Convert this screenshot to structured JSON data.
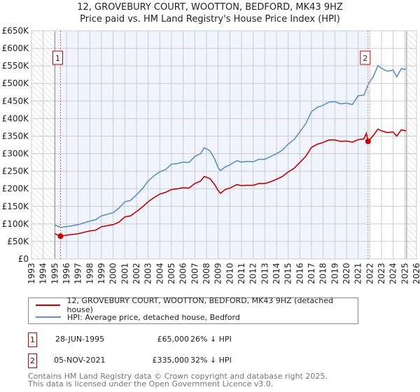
{
  "title_line1": "12, GROVEBURY COURT, WOOTTON, BEDFORD, MK43 9HZ",
  "title_line2": "Price paid vs. HM Land Registry's House Price Index (HPI)",
  "colors": {
    "price": "#cc0000",
    "hpi": "#5b8fd0",
    "shade": "#f0f4fd"
  },
  "chart_data": {
    "type": "line",
    "ylabel": "",
    "xlabel": "",
    "ylim": [
      0,
      650000
    ],
    "xlim": [
      1993,
      2026
    ],
    "yticks": [
      "£0",
      "£50K",
      "£100K",
      "£150K",
      "£200K",
      "£250K",
      "£300K",
      "£350K",
      "£400K",
      "£450K",
      "£500K",
      "£550K",
      "£600K",
      "£650K"
    ],
    "xticks": [
      "1993",
      "1994",
      "1995",
      "1996",
      "1997",
      "1998",
      "1999",
      "2000",
      "2001",
      "2002",
      "2003",
      "2004",
      "2005",
      "2006",
      "2007",
      "2008",
      "2009",
      "2010",
      "2011",
      "2012",
      "2013",
      "2014",
      "2015",
      "2016",
      "2017",
      "2018",
      "2019",
      "2020",
      "2021",
      "2022",
      "2023",
      "2024",
      "2025",
      "2026"
    ],
    "data_range": [
      1995.0,
      2025.15
    ],
    "series": [
      {
        "name": "12, GROVEBURY COURT, WOOTTON, BEDFORD, MK43 9HZ (detached house)",
        "color": "#cc0000",
        "points": [
          [
            1995.0,
            72
          ],
          [
            1995.5,
            65
          ],
          [
            1996,
            68
          ],
          [
            1997,
            72
          ],
          [
            1998,
            80
          ],
          [
            1998.5,
            82
          ],
          [
            1999,
            92
          ],
          [
            2000,
            98
          ],
          [
            2000.5,
            105
          ],
          [
            2001,
            120
          ],
          [
            2001.5,
            123
          ],
          [
            2002,
            135
          ],
          [
            2002.5,
            148
          ],
          [
            2003,
            163
          ],
          [
            2003.5,
            175
          ],
          [
            2004,
            185
          ],
          [
            2004.5,
            190
          ],
          [
            2005,
            198
          ],
          [
            2005.5,
            200
          ],
          [
            2006,
            203
          ],
          [
            2006.5,
            202
          ],
          [
            2007,
            215
          ],
          [
            2007.5,
            222
          ],
          [
            2007.8,
            235
          ],
          [
            2008.3,
            229
          ],
          [
            2008.7,
            212
          ],
          [
            2009,
            195
          ],
          [
            2009.2,
            187
          ],
          [
            2009.6,
            198
          ],
          [
            2010,
            202
          ],
          [
            2010.6,
            212
          ],
          [
            2011,
            209
          ],
          [
            2011.5,
            210
          ],
          [
            2012,
            210
          ],
          [
            2012.5,
            215
          ],
          [
            2013,
            215
          ],
          [
            2013.5,
            220
          ],
          [
            2014,
            227
          ],
          [
            2014.5,
            235
          ],
          [
            2015,
            248
          ],
          [
            2015.5,
            258
          ],
          [
            2016,
            275
          ],
          [
            2016.5,
            292
          ],
          [
            2017,
            318
          ],
          [
            2017.5,
            327
          ],
          [
            2018,
            332
          ],
          [
            2018.5,
            339
          ],
          [
            2019,
            339
          ],
          [
            2019.5,
            335
          ],
          [
            2020,
            336
          ],
          [
            2020.5,
            333
          ],
          [
            2021,
            340
          ],
          [
            2021.5,
            342
          ],
          [
            2021.7,
            358
          ],
          [
            2021.85,
            335
          ],
          [
            2022.3,
            352
          ],
          [
            2022.7,
            370
          ],
          [
            2023,
            365
          ],
          [
            2023.5,
            360
          ],
          [
            2024,
            362
          ],
          [
            2024.3,
            350
          ],
          [
            2024.7,
            368
          ],
          [
            2025.1,
            365
          ]
        ]
      },
      {
        "name": "HPI: Average price, detached house, Bedford",
        "color": "#5b8fd0",
        "points": [
          [
            1995.0,
            97
          ],
          [
            1995.5,
            90
          ],
          [
            1996,
            92
          ],
          [
            1997,
            98
          ],
          [
            1998,
            108
          ],
          [
            1998.5,
            112
          ],
          [
            1999,
            123
          ],
          [
            2000,
            132
          ],
          [
            2000.5,
            145
          ],
          [
            2001,
            163
          ],
          [
            2001.5,
            167
          ],
          [
            2002,
            183
          ],
          [
            2002.5,
            200
          ],
          [
            2003,
            222
          ],
          [
            2003.5,
            237
          ],
          [
            2004,
            248
          ],
          [
            2004.5,
            255
          ],
          [
            2005,
            270
          ],
          [
            2005.5,
            272
          ],
          [
            2006,
            276
          ],
          [
            2006.5,
            275
          ],
          [
            2007,
            292
          ],
          [
            2007.5,
            300
          ],
          [
            2007.8,
            317
          ],
          [
            2008.3,
            308
          ],
          [
            2008.7,
            285
          ],
          [
            2009,
            260
          ],
          [
            2009.2,
            252
          ],
          [
            2009.6,
            262
          ],
          [
            2010,
            268
          ],
          [
            2010.6,
            280
          ],
          [
            2011,
            276
          ],
          [
            2011.5,
            278
          ],
          [
            2012,
            277
          ],
          [
            2012.5,
            284
          ],
          [
            2013,
            284
          ],
          [
            2013.5,
            292
          ],
          [
            2014,
            300
          ],
          [
            2014.5,
            310
          ],
          [
            2015,
            327
          ],
          [
            2015.5,
            340
          ],
          [
            2016,
            362
          ],
          [
            2016.5,
            385
          ],
          [
            2017,
            420
          ],
          [
            2017.5,
            432
          ],
          [
            2018,
            438
          ],
          [
            2018.5,
            447
          ],
          [
            2019,
            448
          ],
          [
            2019.5,
            442
          ],
          [
            2020,
            444
          ],
          [
            2020.5,
            440
          ],
          [
            2021,
            465
          ],
          [
            2021.5,
            467
          ],
          [
            2021.9,
            500
          ],
          [
            2022.3,
            520
          ],
          [
            2022.7,
            551
          ],
          [
            2023,
            543
          ],
          [
            2023.5,
            535
          ],
          [
            2024,
            538
          ],
          [
            2024.3,
            519
          ],
          [
            2024.7,
            542
          ],
          [
            2025.1,
            540
          ]
        ]
      }
    ],
    "sales": [
      {
        "label": "1",
        "x": 1995.49,
        "value": 65000
      },
      {
        "label": "2",
        "x": 2021.85,
        "value": 335000
      }
    ]
  },
  "legend": {
    "price": "12, GROVEBURY COURT, WOOTTON, BEDFORD, MK43 9HZ (detached house)",
    "hpi": "HPI: Average price, detached house, Bedford"
  },
  "transactions": [
    {
      "num": "1",
      "date": "28-JUN-1995",
      "price": "£65,000",
      "delta": "26% ↓ HPI"
    },
    {
      "num": "2",
      "date": "05-NOV-2021",
      "price": "£335,000",
      "delta": "32% ↓ HPI"
    }
  ],
  "footer_line1": "Contains HM Land Registry data © Crown copyright and database right 2025.",
  "footer_line2": "This data is licensed under the Open Government Licence v3.0."
}
